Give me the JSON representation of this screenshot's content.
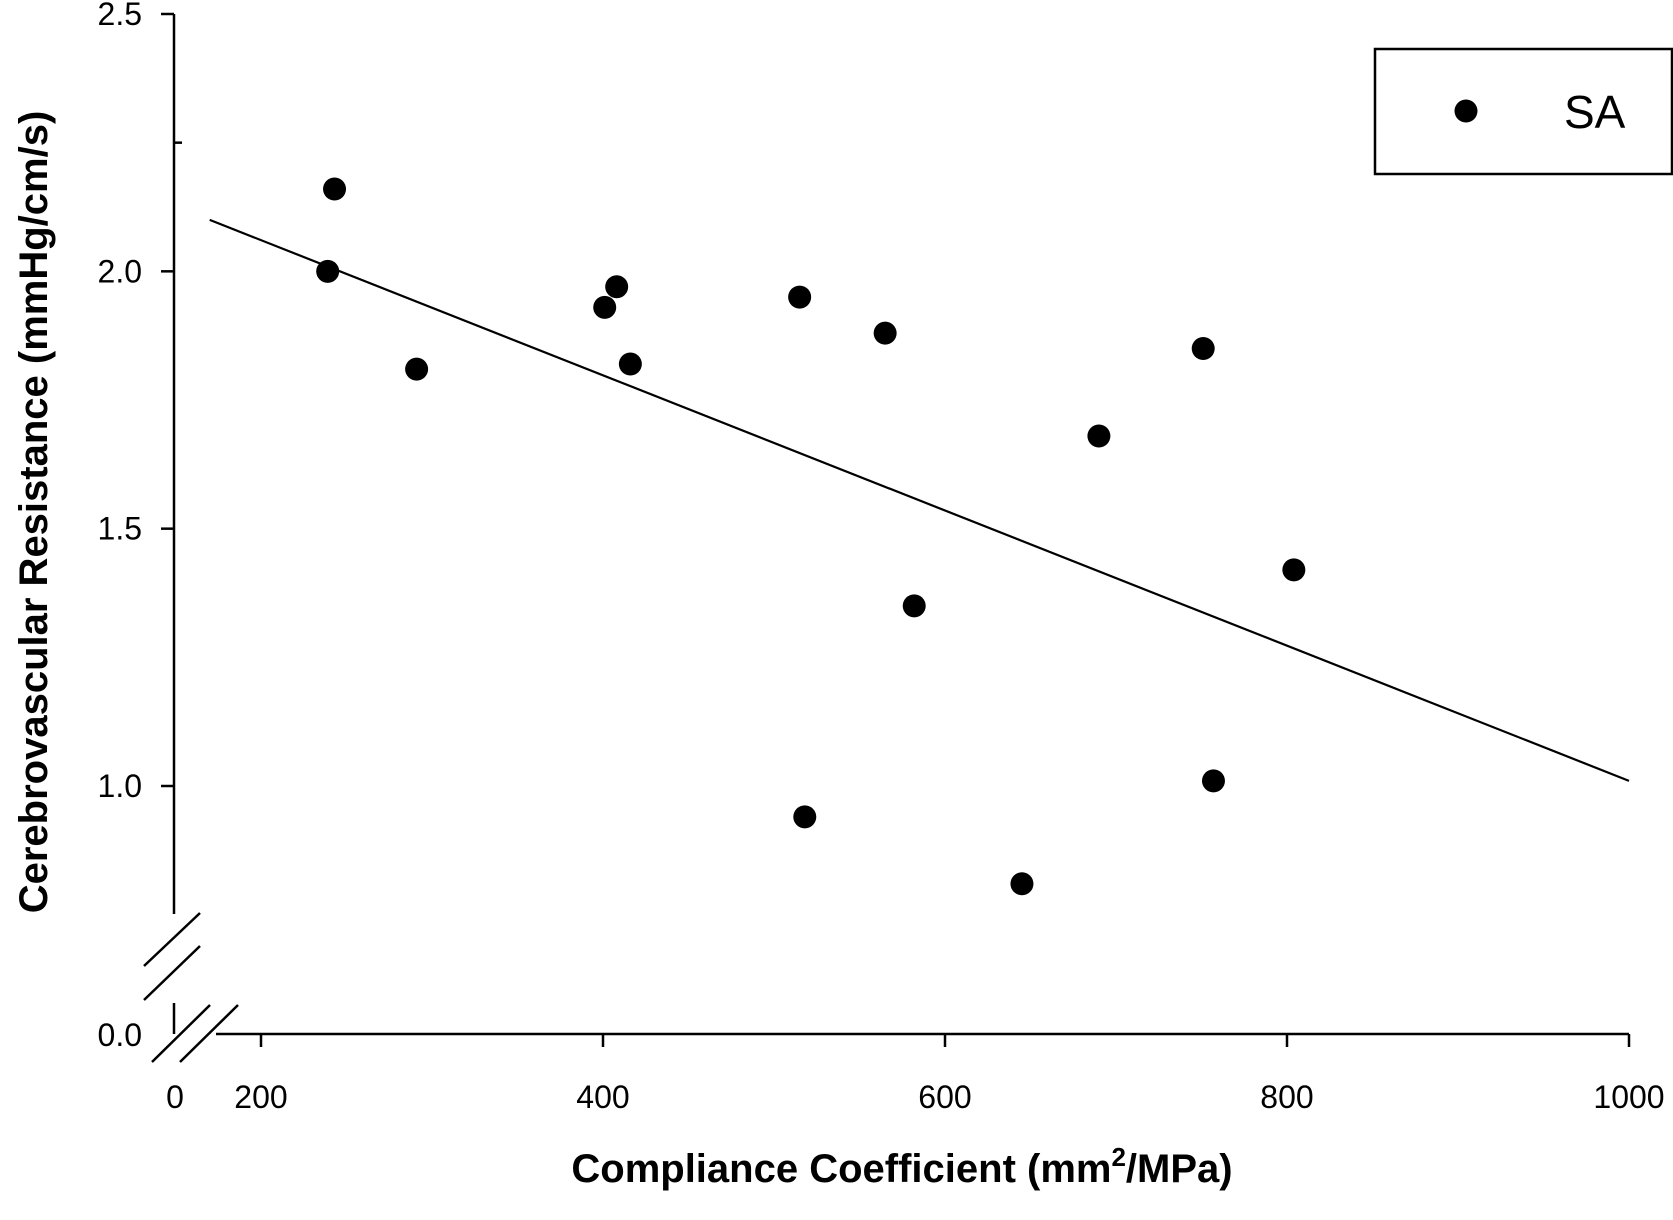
{
  "chart_data": {
    "type": "scatter",
    "xlabel_main": "Compliance Coefficient (mm",
    "xlabel_sup": "2",
    "xlabel_end": "/MPa)",
    "ylabel": "Cerebrovascular Resistance (mmHg/cm/s)",
    "xlim": [
      0,
      1000
    ],
    "ylim": [
      0,
      2.5
    ],
    "x_axis_break": true,
    "y_axis_break": true,
    "x_ticks": [
      200,
      400,
      600,
      800,
      1000
    ],
    "x_tick_labels": [
      "200",
      "400",
      "600",
      "800",
      "1000"
    ],
    "x_zero_label": "0",
    "y_ticks": [
      1.0,
      1.5,
      2.0,
      2.5
    ],
    "y_tick_labels": [
      "1.0",
      "1.5",
      "2.0",
      "2.5"
    ],
    "y_zero_label": "0.0",
    "legend": {
      "position": "top-right",
      "entries": [
        "SA"
      ]
    },
    "grid": false,
    "series": [
      {
        "name": "SA",
        "points": [
          {
            "x": 243,
            "y": 2.16
          },
          {
            "x": 239,
            "y": 2.0
          },
          {
            "x": 291,
            "y": 1.81
          },
          {
            "x": 401,
            "y": 1.93
          },
          {
            "x": 408,
            "y": 1.97
          },
          {
            "x": 416,
            "y": 1.82
          },
          {
            "x": 515,
            "y": 1.95
          },
          {
            "x": 518,
            "y": 0.94
          },
          {
            "x": 565,
            "y": 1.88
          },
          {
            "x": 582,
            "y": 1.35
          },
          {
            "x": 645,
            "y": 0.81
          },
          {
            "x": 690,
            "y": 1.68
          },
          {
            "x": 751,
            "y": 1.85
          },
          {
            "x": 757,
            "y": 1.01
          },
          {
            "x": 804,
            "y": 1.42
          }
        ]
      }
    ],
    "regression": {
      "x": [
        170,
        1000
      ],
      "y": [
        2.1,
        1.01
      ]
    }
  }
}
